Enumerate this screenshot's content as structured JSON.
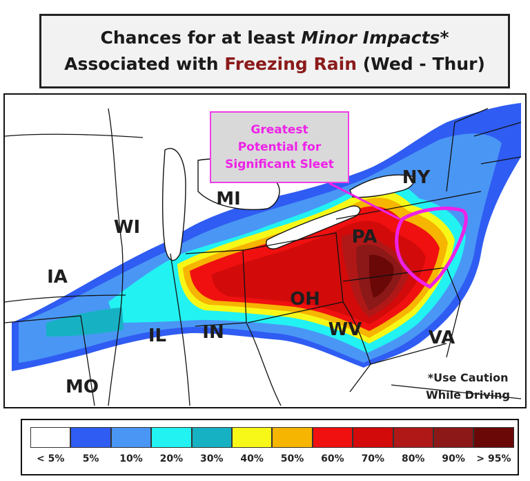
{
  "title": {
    "line1_prefix": "Chances for at least ",
    "line1_emph": "Minor Impacts",
    "line1_suffix": "*",
    "line2_prefix": "Associated with ",
    "line2_highlight": "Freezing Rain",
    "line2_suffix": " (Wed - Thur)",
    "highlight_color": "#8b1a1a"
  },
  "map": {
    "state_labels": [
      "NY",
      "MI",
      "WI",
      "PA",
      "IA",
      "OH",
      "IL",
      "IN",
      "WV",
      "VA",
      "MO"
    ],
    "callout": {
      "line1": "Greatest",
      "line2": "Potential for",
      "line3": "Significant Sleet",
      "color": "#ee22e8"
    },
    "note": {
      "line1": "*Use Caution",
      "line2": "While Driving"
    }
  },
  "legend": {
    "items": [
      {
        "label": "< 5%",
        "color": "#ffffff"
      },
      {
        "label": "5%",
        "color": "#2f5cf2"
      },
      {
        "label": "10%",
        "color": "#4a96f5"
      },
      {
        "label": "20%",
        "color": "#22f2f2"
      },
      {
        "label": "30%",
        "color": "#16b2c4"
      },
      {
        "label": "40%",
        "color": "#f8f818"
      },
      {
        "label": "50%",
        "color": "#f6b500"
      },
      {
        "label": "60%",
        "color": "#f01010"
      },
      {
        "label": "70%",
        "color": "#d20a0a"
      },
      {
        "label": "80%",
        "color": "#b01818"
      },
      {
        "label": "90%",
        "color": "#8c1818"
      },
      {
        "label": "> 95%",
        "color": "#6a0808"
      }
    ]
  }
}
